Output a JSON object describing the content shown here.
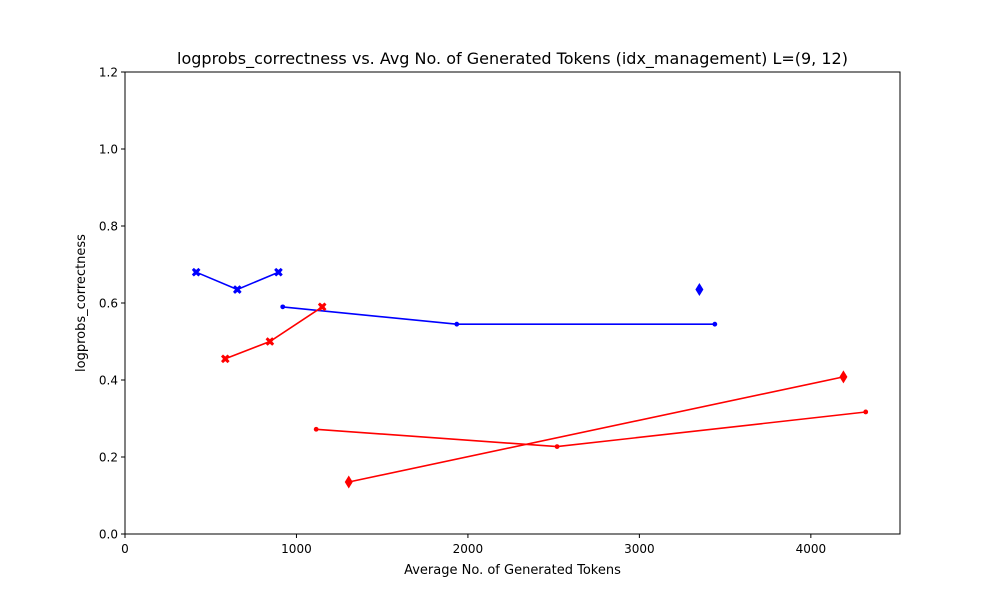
{
  "chart_data": {
    "type": "line",
    "title": "logprobs_correctness vs. Avg No. of Generated Tokens (idx_management) L=(9, 12)",
    "xlabel": "Average No. of Generated Tokens",
    "ylabel": "logprobs_correctness",
    "xlim": [
      0,
      4520
    ],
    "ylim": [
      0,
      1.2
    ],
    "x_ticks": [
      0,
      1000,
      2000,
      3000,
      4000
    ],
    "y_ticks": [
      0.0,
      0.2,
      0.4,
      0.6,
      0.8,
      1.0,
      1.2
    ],
    "x_tick_labels": [
      "0",
      "1000",
      "2000",
      "3000",
      "4000"
    ],
    "y_tick_labels": [
      "0.0",
      "0.2",
      "0.4",
      "0.6",
      "0.8",
      "1.0",
      "1.2"
    ],
    "grid": false,
    "legend": "none",
    "series": [
      {
        "color": "#0000ff",
        "marker": "x",
        "x": [
          415,
          655,
          895
        ],
        "y": [
          0.68,
          0.635,
          0.68
        ]
      },
      {
        "color": "#0000ff",
        "marker": "dot",
        "x": [
          920,
          1935,
          3440
        ],
        "y": [
          0.59,
          0.545,
          0.545
        ]
      },
      {
        "color": "#0000ff",
        "marker": "diamond",
        "x": [
          3350
        ],
        "y": [
          0.635
        ]
      },
      {
        "color": "#ff0000",
        "marker": "x",
        "x": [
          585,
          845,
          1150
        ],
        "y": [
          0.455,
          0.5,
          0.59
        ]
      },
      {
        "color": "#ff0000",
        "marker": "dot",
        "x": [
          1115,
          2520,
          4320
        ],
        "y": [
          0.272,
          0.227,
          0.317
        ]
      },
      {
        "color": "#ff0000",
        "marker": "diamond",
        "x": [
          1305,
          4190
        ],
        "y": [
          0.135,
          0.408
        ]
      }
    ]
  }
}
